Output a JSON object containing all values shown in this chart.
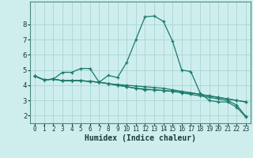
{
  "xlabel": "Humidex (Indice chaleur)",
  "ylabel": "",
  "bg_color": "#ceeeed",
  "grid_color": "#aed8d4",
  "line_color": "#1a7a6a",
  "xlim": [
    -0.5,
    23.5
  ],
  "ylim": [
    1.5,
    9.5
  ],
  "yticks": [
    2,
    3,
    4,
    5,
    6,
    7,
    8
  ],
  "xtick_labels": [
    "0",
    "1",
    "2",
    "3",
    "4",
    "5",
    "6",
    "7",
    "8",
    "9",
    "10",
    "11",
    "12",
    "13",
    "14",
    "15",
    "16",
    "17",
    "18",
    "19",
    "20",
    "21",
    "22",
    "23"
  ],
  "xticks": [
    0,
    1,
    2,
    3,
    4,
    5,
    6,
    7,
    8,
    9,
    10,
    11,
    12,
    13,
    14,
    15,
    16,
    17,
    18,
    19,
    20,
    21,
    22,
    23
  ],
  "series": [
    {
      "x": [
        0,
        1,
        2,
        3,
        4,
        5,
        6,
        7,
        8,
        9,
        10,
        11,
        12,
        13,
        14,
        15,
        16,
        17,
        18,
        19,
        20,
        21,
        22,
        23
      ],
      "y": [
        4.6,
        4.35,
        4.4,
        4.85,
        4.85,
        5.1,
        5.1,
        4.2,
        4.65,
        4.5,
        5.5,
        7.0,
        8.5,
        8.55,
        8.2,
        6.9,
        5.0,
        4.9,
        3.5,
        3.0,
        2.9,
        2.9,
        2.55,
        1.9
      ]
    },
    {
      "x": [
        0,
        1,
        2,
        3,
        4,
        5,
        6,
        7,
        8,
        9,
        10,
        11,
        12,
        13,
        14,
        15,
        16,
        17,
        18,
        19,
        20,
        21,
        22,
        23
      ],
      "y": [
        4.6,
        4.35,
        4.4,
        4.3,
        4.3,
        4.3,
        4.25,
        4.2,
        4.1,
        4.0,
        3.9,
        3.8,
        3.7,
        3.7,
        3.65,
        3.6,
        3.55,
        3.5,
        3.4,
        3.3,
        3.2,
        3.1,
        3.0,
        2.9
      ]
    },
    {
      "x": [
        0,
        1,
        2,
        3,
        4,
        5,
        6,
        7,
        8,
        9,
        10,
        11,
        12,
        13,
        14,
        15,
        16,
        17,
        18,
        19,
        20,
        21,
        22,
        23
      ],
      "y": [
        4.6,
        4.35,
        4.4,
        4.3,
        4.3,
        4.3,
        4.25,
        4.2,
        4.1,
        4.0,
        3.9,
        3.8,
        3.75,
        3.7,
        3.65,
        3.6,
        3.5,
        3.4,
        3.3,
        3.2,
        3.1,
        3.0,
        2.7,
        1.95
      ]
    },
    {
      "x": [
        0,
        1,
        2,
        3,
        4,
        5,
        6,
        7,
        8,
        9,
        10,
        11,
        12,
        13,
        14,
        15,
        16,
        17,
        18,
        19,
        20,
        21,
        22,
        23
      ],
      "y": [
        4.6,
        4.35,
        4.4,
        4.3,
        4.3,
        4.3,
        4.25,
        4.2,
        4.1,
        4.05,
        4.0,
        3.95,
        3.9,
        3.85,
        3.8,
        3.7,
        3.6,
        3.5,
        3.4,
        3.3,
        3.2,
        3.1,
        3.0,
        2.9
      ]
    }
  ]
}
